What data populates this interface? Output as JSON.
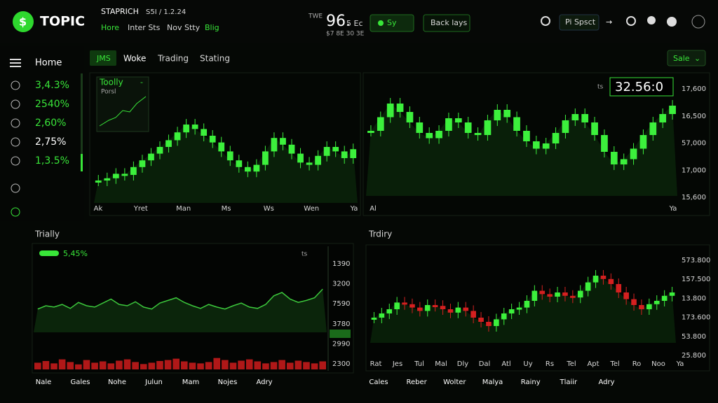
{
  "header": {
    "logo": "TOPIC",
    "brand": "STAPRICH",
    "code": "S5I / 1.2.24",
    "nav": [
      "Hore",
      "Inter Sts",
      "Nov Stty",
      "Blig"
    ],
    "ticker": {
      "label": "TWE",
      "value": "96.",
      "unit": "5 Ec",
      "sub": "$7 8E 30 3E"
    },
    "buttons": [
      "Sy",
      "Back lays"
    ],
    "search_tag": "Pi Spsct"
  },
  "sidebar": {
    "title": "Home",
    "items": [
      "3,4.3%",
      "2540%",
      "2,60%",
      "2,75%",
      "1,3.5%"
    ]
  },
  "tabs": [
    "JMS",
    "Woke",
    "Trading",
    "Stating"
  ],
  "dropdown": "Sale",
  "panels": [
    {
      "title": "Toolly",
      "subtitle": "Porsl",
      "badge": "-",
      "x_labels": [
        "Ak",
        "Yret",
        "Man",
        "Ms",
        "Ws",
        "Wen",
        "Ya"
      ],
      "ylim": [
        0,
        100
      ],
      "values": [
        20,
        22,
        26,
        25,
        32,
        38,
        44,
        50,
        56,
        63,
        70,
        66,
        60,
        54,
        46,
        38,
        32,
        28,
        34,
        46,
        58,
        52,
        44,
        36,
        34,
        42,
        50,
        46,
        40,
        48
      ]
    },
    {
      "price": "32.56:0",
      "badge": "ts",
      "y_labels": [
        "17,600",
        "16,500",
        "57,000",
        "17,000",
        "15,600"
      ],
      "x_labels": [
        "Al",
        "Ya"
      ],
      "ylim": [
        0,
        100
      ],
      "values": [
        62,
        75,
        88,
        80,
        70,
        60,
        55,
        62,
        74,
        70,
        60,
        58,
        72,
        82,
        75,
        62,
        52,
        45,
        50,
        60,
        72,
        78,
        70,
        58,
        42,
        30,
        35,
        45,
        58,
        70,
        78,
        86
      ]
    },
    {
      "title": "Trially",
      "change": "5,45%",
      "badge": "ts",
      "y_labels": [
        "1390",
        "3200",
        "7590",
        "3780",
        "2990",
        "2300"
      ],
      "x_labels": [
        "Nale",
        "Gales",
        "Nohe",
        "Julun",
        "Mam",
        "Nojes",
        "Adry"
      ],
      "ylim": [
        0,
        100
      ],
      "values": [
        35,
        40,
        38,
        42,
        36,
        45,
        40,
        38,
        44,
        50,
        42,
        40,
        46,
        38,
        35,
        44,
        48,
        52,
        45,
        40,
        36,
        42,
        38,
        35,
        40,
        44,
        38,
        36,
        42,
        55,
        60,
        50,
        45,
        48,
        52,
        65
      ],
      "vlim": [
        0,
        100
      ],
      "volumes": [
        20,
        25,
        18,
        30,
        22,
        15,
        28,
        20,
        24,
        18,
        26,
        30,
        22,
        16,
        20,
        25,
        28,
        32,
        24,
        20,
        18,
        22,
        34,
        28,
        20,
        26,
        30,
        24,
        18,
        22,
        28,
        20,
        26,
        22,
        18,
        24
      ]
    },
    {
      "title": "Trdiry",
      "y_labels": [
        "573.800",
        "157.500",
        "13.800",
        "173.600",
        "53.800",
        "25.800"
      ],
      "x_labels": [
        "Rat",
        "Jes",
        "Tul",
        "Mal",
        "Dly",
        "Dal",
        "Atl",
        "Uy",
        "Rs",
        "Tel",
        "Apt",
        "Tel",
        "Ro",
        "Noo",
        "Ya"
      ],
      "bottom_labels": [
        "Cales",
        "Reber",
        "Wolter",
        "Malya",
        "Rainy",
        "Tlaiir",
        "Adry"
      ],
      "ylim": [
        0,
        100
      ],
      "values": [
        30,
        35,
        40,
        48,
        46,
        42,
        38,
        45,
        44,
        40,
        36,
        42,
        38,
        30,
        25,
        20,
        28,
        35,
        40,
        42,
        50,
        62,
        58,
        55,
        60,
        56,
        54,
        62,
        72,
        80,
        76,
        70,
        60,
        52,
        45,
        40,
        46,
        50,
        56,
        60
      ]
    }
  ]
}
